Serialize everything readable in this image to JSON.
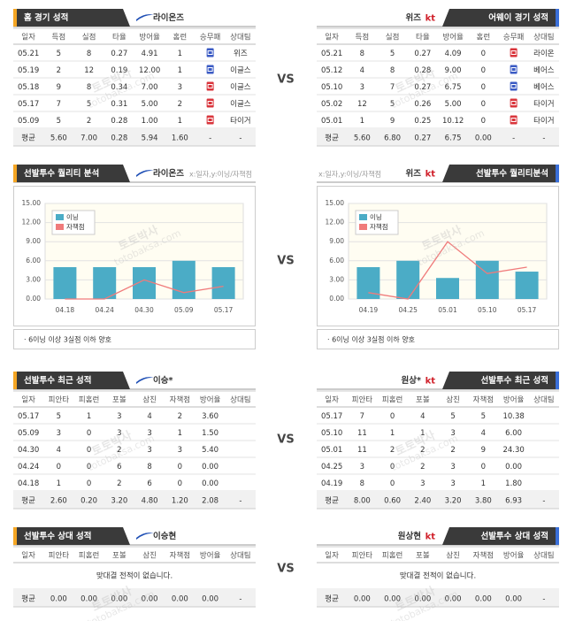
{
  "watermark": [
    "토토박사",
    "totobaksa.com"
  ],
  "vs": "VS",
  "home_away": [
    {
      "title": "홈 경기 성적",
      "team": "라이온즈",
      "headers": [
        "일자",
        "득점",
        "실점",
        "타율",
        "방어율",
        "홈런",
        "승무패",
        "상대팀"
      ],
      "rows": [
        [
          "05.21",
          "5",
          "8",
          "0.27",
          "4.91",
          "1",
          null,
          "위즈"
        ],
        [
          "05.19",
          "2",
          "12",
          "0.19",
          "12.00",
          "1",
          null,
          "이글스"
        ],
        [
          "05.18",
          "9",
          "8",
          "0.34",
          "7.00",
          "3",
          null,
          "이글스"
        ],
        [
          "05.17",
          "7",
          "5",
          "0.31",
          "5.00",
          "2",
          null,
          "이글스"
        ],
        [
          "05.09",
          "5",
          "2",
          "0.28",
          "1.00",
          "1",
          null,
          "타이거"
        ],
        [
          "평균",
          "5.60",
          "7.00",
          "0.28",
          "5.94",
          "1.60",
          "-",
          "-"
        ]
      ],
      "result_colors": [
        "#3b5bc4",
        "#3b5bc4",
        "#d9343b",
        "#d9343b",
        "#d9343b"
      ]
    },
    {
      "title": "어웨이 경기 성적",
      "team": "위즈",
      "logo": "kt",
      "headers": [
        "일자",
        "득점",
        "실점",
        "타율",
        "방어율",
        "홈런",
        "승무패",
        "상대팀"
      ],
      "rows": [
        [
          "05.21",
          "8",
          "5",
          "0.27",
          "4.09",
          "0",
          null,
          "라이온"
        ],
        [
          "05.12",
          "4",
          "8",
          "0.28",
          "9.00",
          "0",
          null,
          "베어스"
        ],
        [
          "05.10",
          "3",
          "7",
          "0.27",
          "6.75",
          "0",
          null,
          "베어스"
        ],
        [
          "05.02",
          "12",
          "5",
          "0.26",
          "5.00",
          "0",
          null,
          "타이거"
        ],
        [
          "05.01",
          "1",
          "9",
          "0.25",
          "10.12",
          "0",
          null,
          "타이거"
        ],
        [
          "평균",
          "5.60",
          "6.80",
          "0.27",
          "6.75",
          "0.00",
          "-",
          "-"
        ]
      ],
      "result_colors": [
        "#d9343b",
        "#3b5bc4",
        "#3b5bc4",
        "#d9343b",
        "#d9343b"
      ]
    }
  ],
  "chart_data": [
    {
      "type": "bar",
      "title": "선발투수 퀄리티 분석",
      "team": "라이온즈",
      "axis_note": "x:일자,y:이닝/자책점",
      "categories": [
        "04.18",
        "04.24",
        "04.30",
        "05.09",
        "05.17"
      ],
      "series": [
        {
          "name": "이닝",
          "type": "bar",
          "color": "#4bacc6",
          "values": [
            5,
            5,
            5,
            6,
            5
          ]
        },
        {
          "name": "자책점",
          "type": "line",
          "color": "#f07b7b",
          "values": [
            0,
            0,
            3,
            1,
            2
          ]
        }
      ],
      "ylim": [
        0,
        15
      ],
      "yticks": [
        {
          "value": 0,
          "label": "0.00"
        },
        {
          "value": 3,
          "label": "3.00"
        },
        {
          "value": 6,
          "label": "6.00"
        },
        {
          "value": 9,
          "label": "9.00"
        },
        {
          "value": 12,
          "label": "12.00"
        },
        {
          "value": 15,
          "label": "15.00"
        }
      ],
      "grid": true,
      "note": "· 6이닝 이상 3실점 이하 양호"
    },
    {
      "type": "bar",
      "title": "선발투수 퀄리티분석",
      "team": "위즈",
      "logo": "kt",
      "axis_note": "x:일자,y:이닝/자책점",
      "categories": [
        "04.19",
        "04.25",
        "05.01",
        "05.10",
        "05.17"
      ],
      "series": [
        {
          "name": "이닝",
          "type": "bar",
          "color": "#4bacc6",
          "values": [
            5,
            6,
            3.3,
            6,
            4.3
          ]
        },
        {
          "name": "자책점",
          "type": "line",
          "color": "#f07b7b",
          "values": [
            1,
            0,
            9,
            4,
            5
          ]
        }
      ],
      "ylim": [
        0,
        15
      ],
      "yticks": [
        {
          "value": 0,
          "label": "0.00"
        },
        {
          "value": 3,
          "label": "3.00"
        },
        {
          "value": 6,
          "label": "6.00"
        },
        {
          "value": 9,
          "label": "9.00"
        },
        {
          "value": 12,
          "label": "12.00"
        },
        {
          "value": 15,
          "label": "15.00"
        }
      ],
      "grid": true,
      "note": "· 6이닝 이상 3실점 이하 양호"
    }
  ],
  "pitcher_recent": [
    {
      "title": "선발투수 최근 성적",
      "team": "이승*",
      "headers": [
        "일자",
        "피안타",
        "피홈런",
        "포볼",
        "삼진",
        "자책점",
        "방어율",
        "상대팀"
      ],
      "rows": [
        [
          "05.17",
          "5",
          "1",
          "3",
          "4",
          "2",
          "3.60",
          null
        ],
        [
          "05.09",
          "3",
          "0",
          "3",
          "3",
          "1",
          "1.50",
          null
        ],
        [
          "04.30",
          "4",
          "0",
          "2",
          "3",
          "3",
          "5.40",
          null
        ],
        [
          "04.24",
          "0",
          "0",
          "6",
          "8",
          "0",
          "0.00",
          null
        ],
        [
          "04.18",
          "1",
          "0",
          "2",
          "6",
          "0",
          "0.00",
          null
        ],
        [
          "평균",
          "2.60",
          "0.20",
          "3.20",
          "4.80",
          "1.20",
          "2.08",
          "-"
        ]
      ]
    },
    {
      "title": "선발투수 최근 성적",
      "team": "원상*",
      "logo": "kt",
      "headers": [
        "일자",
        "피안타",
        "피홈런",
        "포볼",
        "삼진",
        "자책점",
        "방어율",
        "상대팀"
      ],
      "rows": [
        [
          "05.17",
          "7",
          "0",
          "4",
          "5",
          "5",
          "10.38",
          null
        ],
        [
          "05.10",
          "11",
          "1",
          "1",
          "3",
          "4",
          "6.00",
          null
        ],
        [
          "05.01",
          "11",
          "2",
          "2",
          "2",
          "9",
          "24.30",
          null
        ],
        [
          "04.25",
          "3",
          "0",
          "2",
          "3",
          "0",
          "0.00",
          null
        ],
        [
          "04.19",
          "8",
          "0",
          "3",
          "3",
          "1",
          "1.80",
          null
        ],
        [
          "평균",
          "8.00",
          "0.60",
          "2.40",
          "3.20",
          "3.80",
          "6.93",
          "-"
        ]
      ]
    }
  ],
  "pitcher_vs": [
    {
      "title": "선발투수 상대 성적",
      "team": "이승현",
      "headers": [
        "일자",
        "피안타",
        "피홈런",
        "포볼",
        "삼진",
        "자책점",
        "방어율",
        "상대팀"
      ],
      "message": "맞대결 전적이 없습니다.",
      "rows": [
        [
          "평균",
          "0.00",
          "0.00",
          "0.00",
          "0.00",
          "0.00",
          "0.00",
          "-"
        ]
      ]
    },
    {
      "title": "선발투수 상대 성적",
      "team": "원상현",
      "logo": "kt",
      "headers": [
        "일자",
        "피안타",
        "피홈런",
        "포볼",
        "삼진",
        "자책점",
        "방어율",
        "상대팀"
      ],
      "message": "맞대결 전적이 없습니다.",
      "rows": [
        [
          "평균",
          "0.00",
          "0.00",
          "0.00",
          "0.00",
          "0.00",
          "0.00",
          "-"
        ]
      ]
    }
  ]
}
